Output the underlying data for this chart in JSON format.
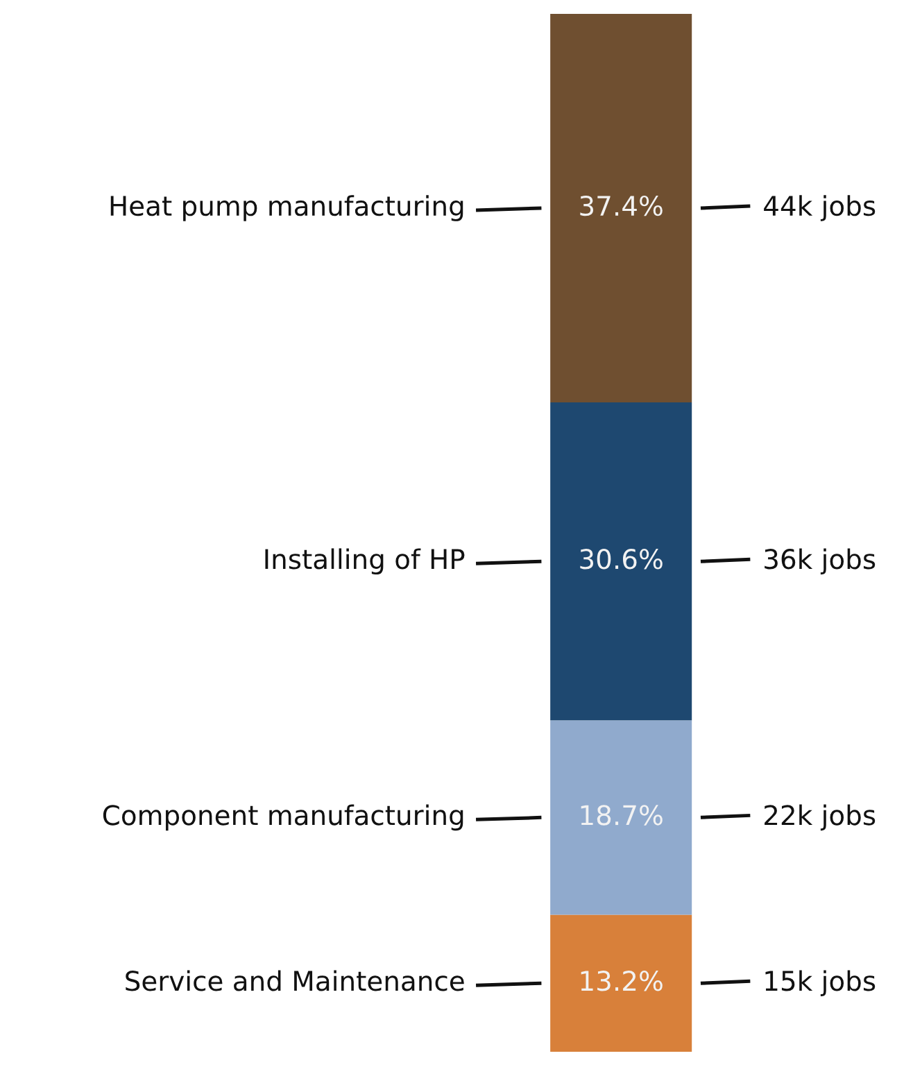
{
  "chart_data": {
    "type": "bar",
    "stacked": true,
    "categories": [
      null
    ],
    "series": [
      {
        "name": "Service and Maintenance",
        "color": "#d8803a",
        "values": [
          13.2
        ],
        "value_labels": [
          "13.2%"
        ]
      },
      {
        "name": "Component manufacturing",
        "color": "#90aacd",
        "values": [
          18.7
        ],
        "value_labels": [
          "18.7%"
        ]
      },
      {
        "name": "Installing of HP",
        "color": "#1e4870",
        "values": [
          30.6
        ],
        "value_labels": [
          "30.6%"
        ]
      },
      {
        "name": "Heat pump manufacturing",
        "color": "#6f4f30",
        "values": [
          37.4
        ],
        "value_labels": [
          "37.4%"
        ]
      }
    ],
    "annotations": [
      "15k jobs",
      "22k jobs",
      "36k jobs",
      "44k jobs"
    ],
    "ylim": [
      0,
      99.9
    ],
    "tick_labels": false,
    "legend": false
  }
}
